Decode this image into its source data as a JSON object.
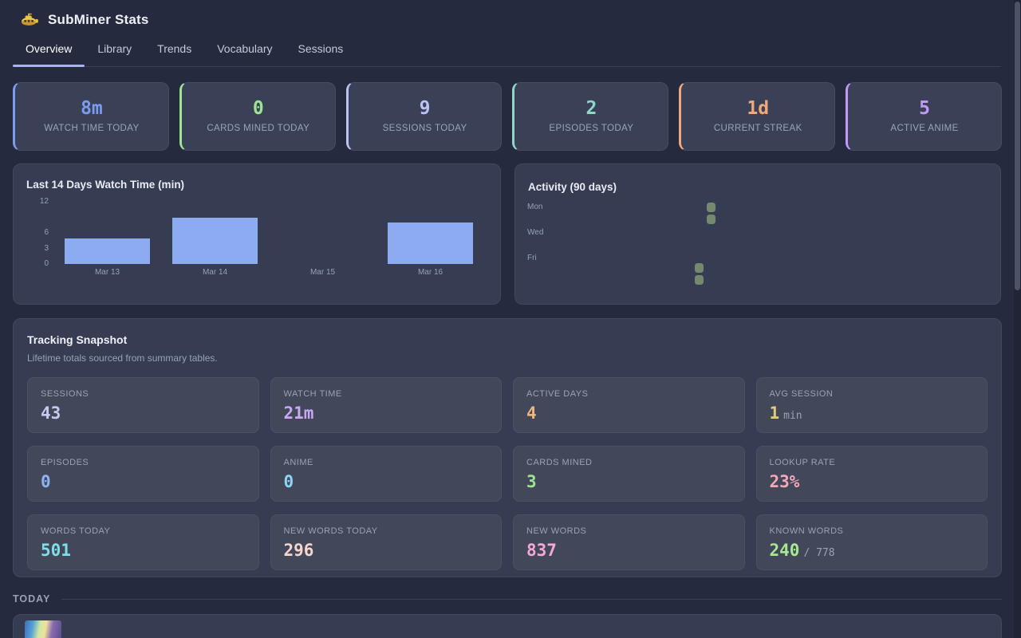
{
  "app": {
    "title": "SubMiner Stats"
  },
  "tabs": [
    {
      "label": "Overview",
      "active": true
    },
    {
      "label": "Library",
      "active": false
    },
    {
      "label": "Trends",
      "active": false
    },
    {
      "label": "Vocabulary",
      "active": false
    },
    {
      "label": "Sessions",
      "active": false
    }
  ],
  "stat_cards": [
    {
      "value": "8m",
      "label": "WATCH TIME TODAY",
      "color": "#7d9cf0"
    },
    {
      "value": "0",
      "label": "CARDS MINED TODAY",
      "color": "#9ee493"
    },
    {
      "value": "9",
      "label": "SESSIONS TODAY",
      "color": "#bcc2f5"
    },
    {
      "value": "2",
      "label": "EPISODES TODAY",
      "color": "#8fd8c8"
    },
    {
      "value": "1d",
      "label": "CURRENT STREAK",
      "color": "#f2a878"
    },
    {
      "value": "5",
      "label": "ACTIVE ANIME",
      "color": "#c09af5"
    }
  ],
  "chart_data": {
    "type": "bar",
    "title": "Last 14 Days Watch Time (min)",
    "categories": [
      "Mar 13",
      "Mar 14",
      "Mar 15",
      "Mar 16"
    ],
    "values": [
      5,
      9,
      0,
      8
    ],
    "yticks": [
      12,
      6,
      3,
      0
    ],
    "ylim": [
      0,
      12
    ],
    "xlabel": "",
    "ylabel": "",
    "grid": false,
    "legend": false,
    "bar_color": "#8cabf0"
  },
  "activity": {
    "title": "Activity (90 days)",
    "day_labels": [
      "Mon",
      "Wed",
      "Fri"
    ],
    "cell_color": "#75896e",
    "active_cells": [
      {
        "week": 13,
        "day": 0
      },
      {
        "week": 13,
        "day": 1
      },
      {
        "week": 12,
        "day": 5
      },
      {
        "week": 12,
        "day": 6
      }
    ]
  },
  "snapshot": {
    "title": "Tracking Snapshot",
    "subtitle": "Lifetime totals sourced from summary tables.",
    "tiles": [
      {
        "label": "SESSIONS",
        "value": "43",
        "suffix": "",
        "color": "#c6c9f2"
      },
      {
        "label": "WATCH TIME",
        "value": "21m",
        "suffix": "",
        "color": "#c9a8f5"
      },
      {
        "label": "ACTIVE DAYS",
        "value": "4",
        "suffix": "",
        "color": "#f0b37e"
      },
      {
        "label": "AVG SESSION",
        "value": "1",
        "suffix": "min",
        "color": "#e6c97e"
      },
      {
        "label": "EPISODES",
        "value": "0",
        "suffix": "",
        "color": "#8cb4f2"
      },
      {
        "label": "ANIME",
        "value": "0",
        "suffix": "",
        "color": "#8ed4f5"
      },
      {
        "label": "CARDS MINED",
        "value": "3",
        "suffix": "",
        "color": "#9ee493"
      },
      {
        "label": "LOOKUP RATE",
        "value": "23%",
        "suffix": "",
        "color": "#f2a8b8"
      },
      {
        "label": "WORDS TODAY",
        "value": "501",
        "suffix": "",
        "color": "#7edfe8"
      },
      {
        "label": "NEW WORDS TODAY",
        "value": "296",
        "suffix": "",
        "color": "#f5d5cc"
      },
      {
        "label": "NEW WORDS",
        "value": "837",
        "suffix": "",
        "color": "#f5a8d8"
      },
      {
        "label": "KNOWN WORDS",
        "value": "240",
        "suffix": "/ 778",
        "color": "#a8e88f"
      }
    ]
  },
  "today": {
    "label": "TODAY"
  }
}
